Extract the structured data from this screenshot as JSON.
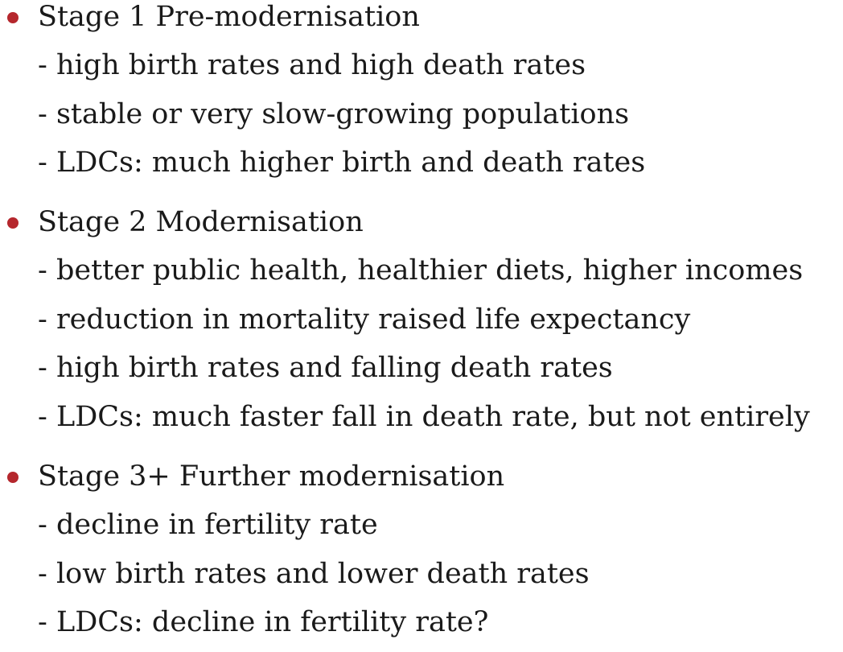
{
  "stages": [
    {
      "title": "Stage 1 Pre-modernisation",
      "points": [
        "- high birth rates and high death rates",
        "- stable or very slow-growing populations",
        "- LDCs: much higher birth and death rates"
      ]
    },
    {
      "title": "Stage 2 Modernisation",
      "points": [
        "- better public health, healthier diets, higher incomes",
        "- reduction in mortality raised life expectancy",
        "- high birth rates and falling death rates",
        "- LDCs: much faster fall in death rate, but not entirely"
      ]
    },
    {
      "title": "Stage 3+ Further modernisation",
      "points": [
        "- decline in fertility rate",
        "- low birth rates and lower death rates",
        "- LDCs: decline in fertility rate?"
      ]
    }
  ],
  "colors": {
    "bullet": "#b5272d",
    "text": "#1a1a1a"
  }
}
